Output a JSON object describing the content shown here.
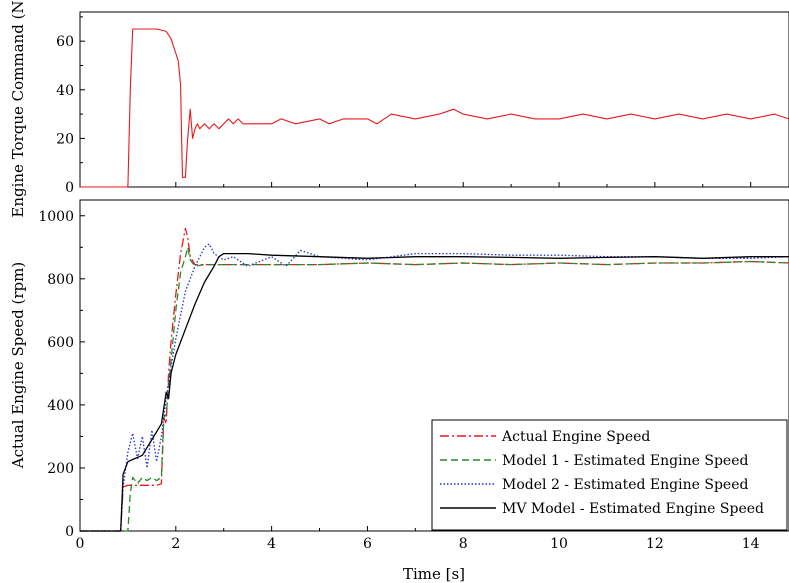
{
  "chart_data": [
    {
      "type": "line",
      "ylabel": "Engine Torque Command (Nm)",
      "xlabel": "",
      "xlim": [
        0,
        14.8
      ],
      "ylim": [
        0,
        72
      ],
      "xticks": [
        0,
        2,
        4,
        6,
        8,
        10,
        12,
        14
      ],
      "yticks": [
        0,
        20,
        40,
        60
      ],
      "grid": false,
      "series": [
        {
          "color": "#e8191d",
          "style": "solid",
          "x": [
            0,
            1.0,
            1.05,
            1.1,
            1.2,
            1.6,
            1.8,
            1.9,
            2.0,
            2.05,
            2.1,
            2.12,
            2.14,
            2.2,
            2.24,
            2.3,
            2.35,
            2.4,
            2.45,
            2.5,
            2.6,
            2.7,
            2.8,
            2.9,
            3.0,
            3.1,
            3.2,
            3.3,
            3.4,
            4.0,
            4.2,
            4.5,
            5.0,
            5.2,
            5.5,
            6.0,
            6.2,
            6.5,
            7.0,
            7.5,
            7.8,
            8.0,
            8.5,
            9.0,
            9.5,
            10.0,
            10.5,
            11.0,
            11.5,
            12.0,
            12.5,
            13.0,
            13.5,
            14.0,
            14.5,
            14.8
          ],
          "y": [
            0,
            0,
            40,
            65,
            65,
            65,
            64,
            61,
            55,
            52,
            42,
            20,
            4,
            4,
            18,
            32,
            20,
            24,
            26,
            24,
            26,
            24,
            26,
            24,
            26,
            28,
            26,
            28,
            26,
            26,
            28,
            26,
            28,
            26,
            28,
            28,
            26,
            30,
            28,
            30,
            32,
            30,
            28,
            30,
            28,
            28,
            30,
            28,
            30,
            28,
            30,
            28,
            30,
            28,
            30,
            28
          ]
        }
      ]
    },
    {
      "type": "line",
      "xlabel": "Time [s]",
      "ylabel": "Actual Engine Speed (rpm)",
      "xlim": [
        0,
        14.8
      ],
      "ylim": [
        0,
        1050
      ],
      "xticks": [
        0,
        2,
        4,
        6,
        8,
        10,
        12,
        14
      ],
      "yticks": [
        0,
        200,
        400,
        600,
        800,
        1000
      ],
      "grid": false,
      "legend": "bottom-right",
      "series": [
        {
          "name": "Actual Engine Speed",
          "color": "#e8191d",
          "style": "dash-dot",
          "x": [
            0,
            0.85,
            0.9,
            1.0,
            1.6,
            1.7,
            1.75,
            1.8,
            1.85,
            1.9,
            2.0,
            2.1,
            2.2,
            2.25,
            2.3,
            2.4,
            2.6,
            3.0,
            4.0,
            5.0,
            6.0,
            7.0,
            8.0,
            9.0,
            10.0,
            11.0,
            12.0,
            13.0,
            14.0,
            14.8
          ],
          "y": [
            0,
            0,
            140,
            145,
            145,
            150,
            360,
            340,
            500,
            600,
            750,
            880,
            960,
            930,
            870,
            845,
            845,
            845,
            845,
            845,
            850,
            845,
            850,
            845,
            850,
            845,
            850,
            850,
            855,
            850
          ]
        },
        {
          "name": "Model 1 - Estimated Engine Speed",
          "color": "#2a8a2a",
          "style": "dashed",
          "x": [
            0,
            1.0,
            1.05,
            1.1,
            1.2,
            1.3,
            1.4,
            1.5,
            1.6,
            1.7,
            1.75,
            1.8,
            1.9,
            2.0,
            2.1,
            2.2,
            2.25,
            2.3,
            2.4,
            2.6,
            3.0,
            4.0,
            5.0,
            6.0,
            7.0,
            8.0,
            9.0,
            10.0,
            11.0,
            12.0,
            13.0,
            14.0,
            14.8
          ],
          "y": [
            0,
            0,
            120,
            170,
            150,
            170,
            160,
            170,
            160,
            170,
            360,
            370,
            540,
            700,
            820,
            870,
            900,
            860,
            840,
            845,
            845,
            845,
            845,
            850,
            845,
            850,
            845,
            850,
            845,
            850,
            850,
            855,
            850
          ]
        },
        {
          "name": "Model 2 - Estimated Engine Speed",
          "color": "#1f2fd6",
          "style": "dotted",
          "x": [
            0,
            0.85,
            0.9,
            1.0,
            1.1,
            1.2,
            1.3,
            1.4,
            1.5,
            1.6,
            1.7,
            1.8,
            1.9,
            2.0,
            2.2,
            2.4,
            2.6,
            2.7,
            2.8,
            3.0,
            3.2,
            3.5,
            4.0,
            4.3,
            4.6,
            5.0,
            6.0,
            7.0,
            8.0,
            9.0,
            10.0,
            11.0,
            12.0,
            13.0,
            14.0,
            14.8
          ],
          "y": [
            0,
            0,
            140,
            250,
            310,
            230,
            300,
            200,
            320,
            220,
            300,
            420,
            520,
            610,
            760,
            840,
            900,
            910,
            880,
            860,
            870,
            840,
            870,
            840,
            890,
            870,
            860,
            880,
            880,
            875,
            875,
            870,
            870,
            865,
            865,
            870
          ]
        },
        {
          "name": "MV Model - Estimated Engine Speed",
          "color": "#000000",
          "style": "solid",
          "x": [
            0,
            0.85,
            0.9,
            1.0,
            1.3,
            1.5,
            1.7,
            1.8,
            1.85,
            1.9,
            2.0,
            2.2,
            2.4,
            2.6,
            2.8,
            2.9,
            3.0,
            3.5,
            4.0,
            5.0,
            6.0,
            7.0,
            8.0,
            9.0,
            10.0,
            11.0,
            12.0,
            13.0,
            14.0,
            14.8
          ],
          "y": [
            0,
            0,
            180,
            220,
            240,
            290,
            340,
            440,
            420,
            500,
            560,
            640,
            720,
            790,
            840,
            870,
            880,
            880,
            875,
            870,
            865,
            870,
            870,
            868,
            865,
            868,
            870,
            865,
            870,
            870
          ]
        }
      ]
    }
  ]
}
